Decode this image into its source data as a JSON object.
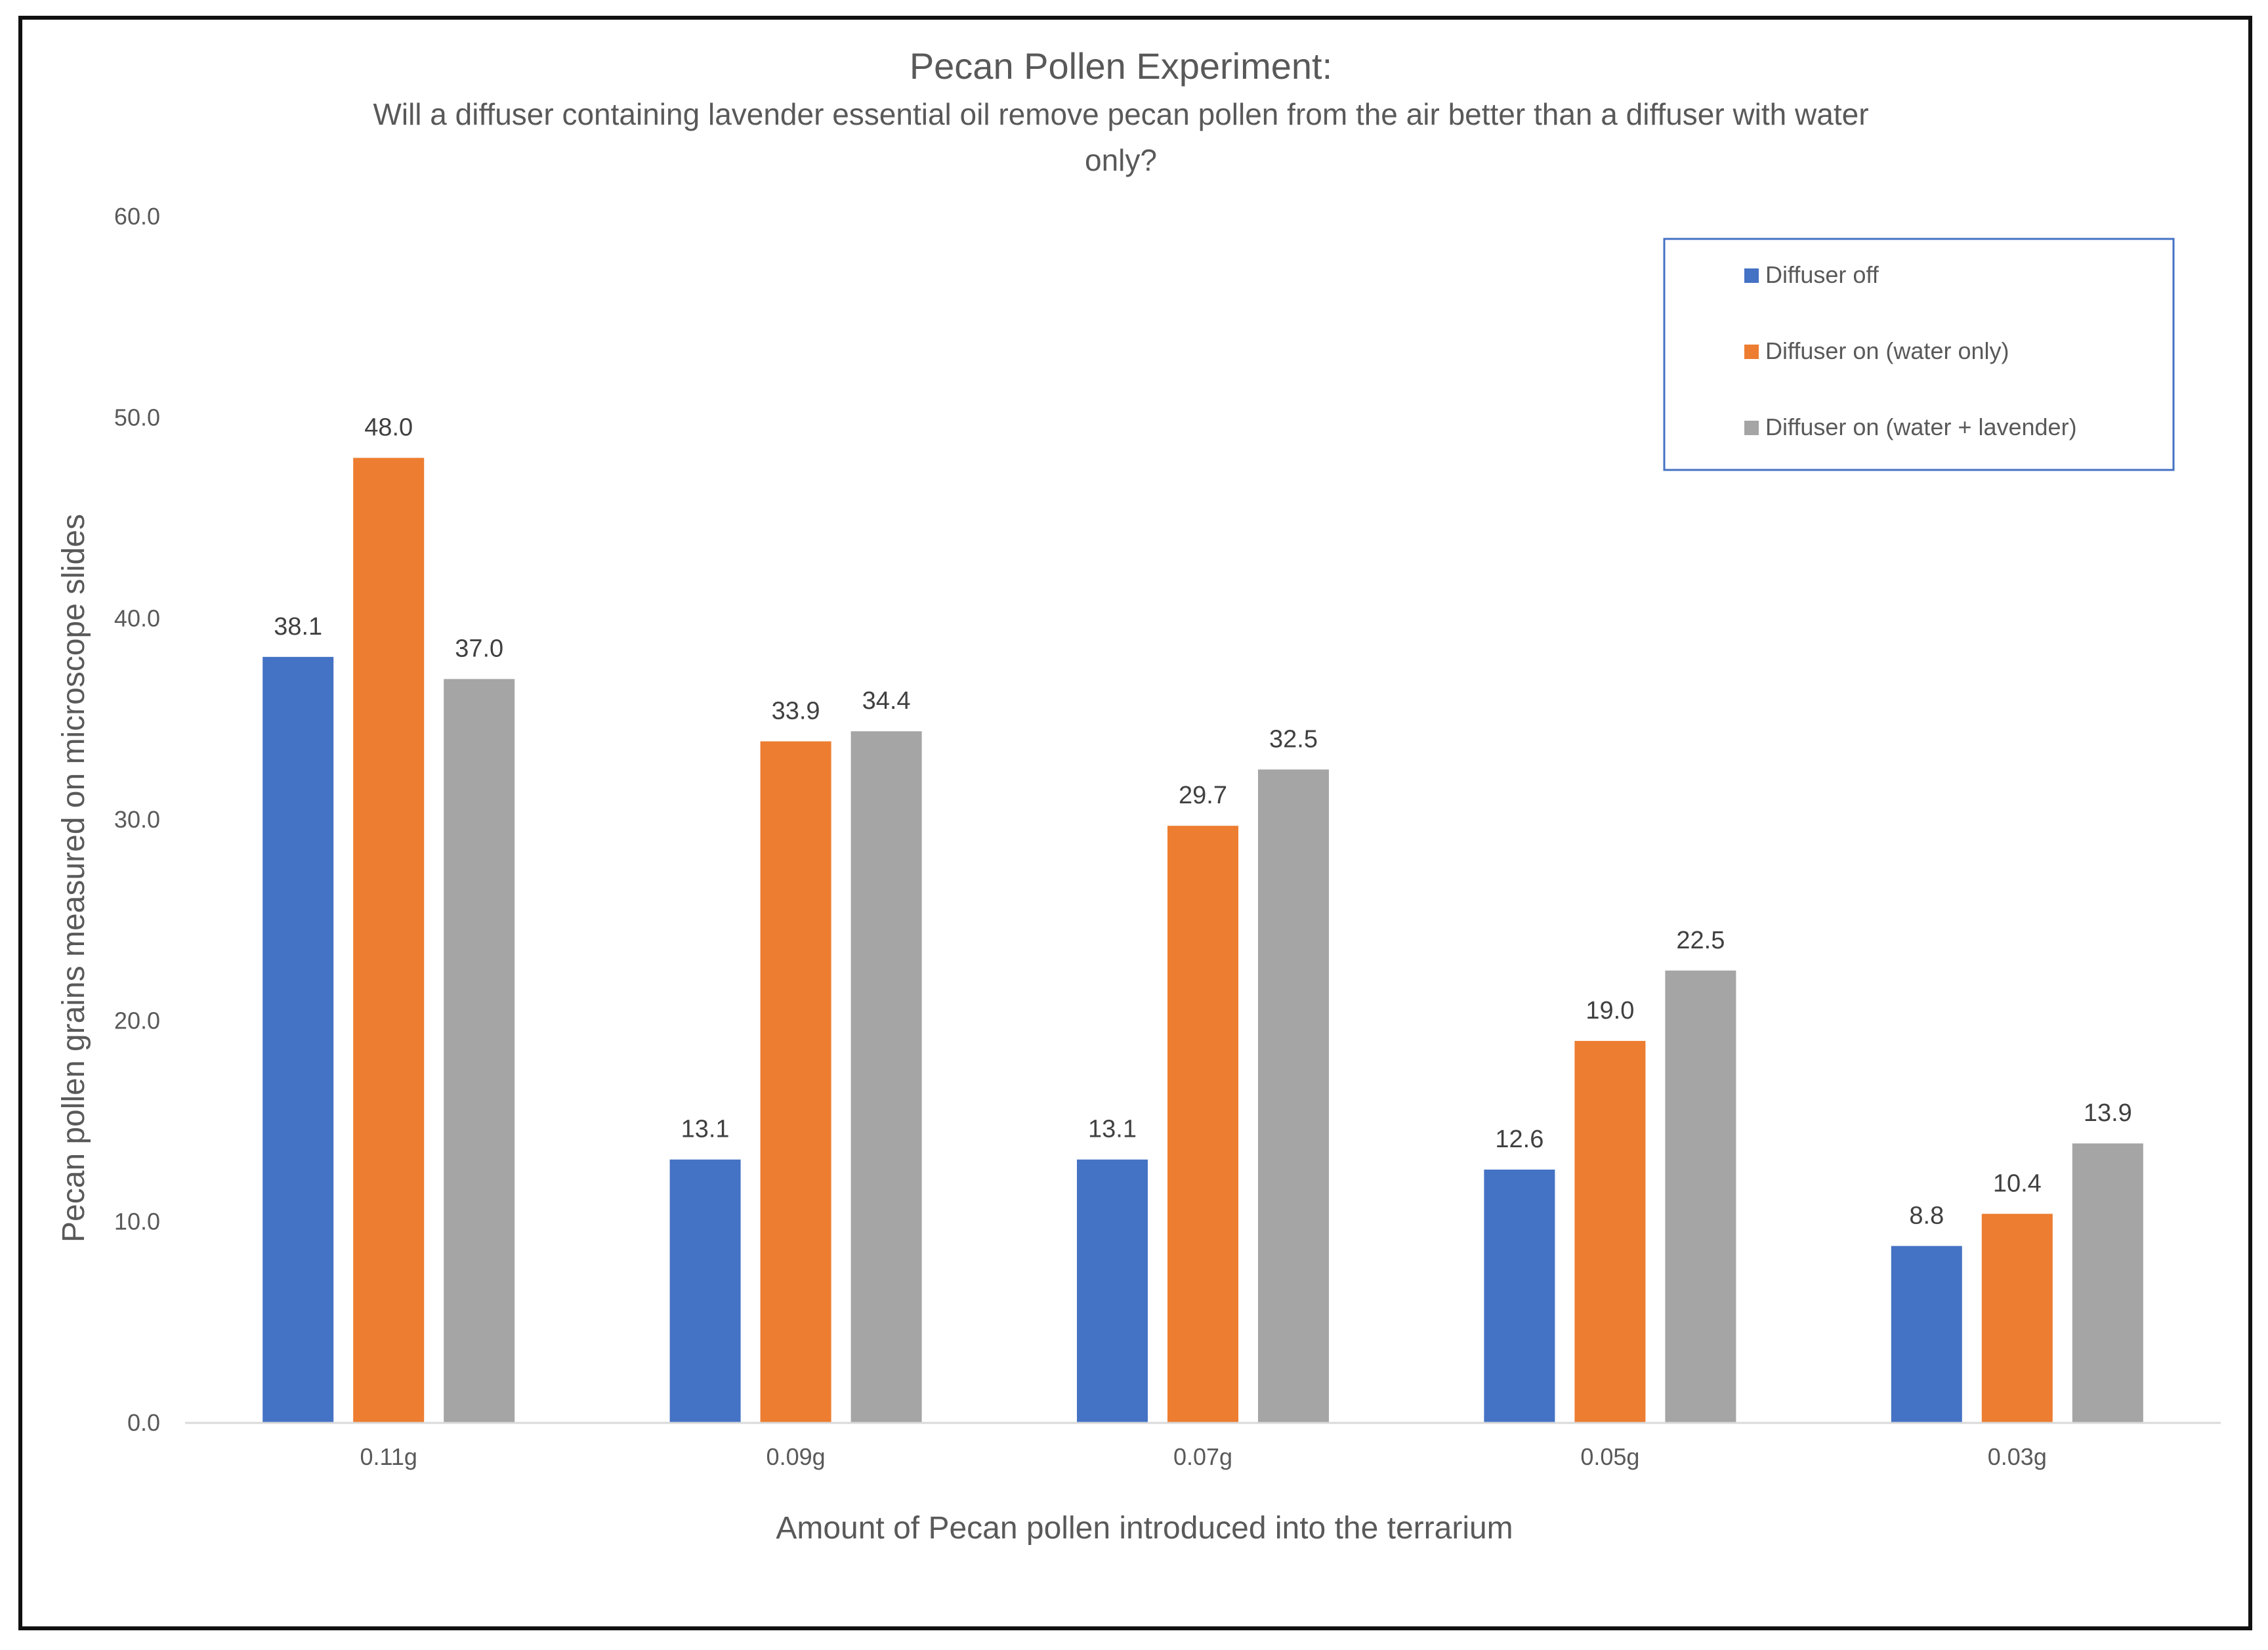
{
  "chart_data": {
    "type": "bar",
    "title": "Pecan Pollen Experiment:",
    "subtitle_line1": "Will a diffuser containing lavender essential oil remove pecan pollen from the air better than a diffuser with water",
    "subtitle_line2": "only?",
    "xlabel": "Amount of Pecan pollen introduced into the terrarium",
    "ylabel": "Pecan pollen grains measured on microscope slides",
    "categories": [
      "0.11g",
      "0.09g",
      "0.07g",
      "0.05g",
      "0.03g"
    ],
    "ylim": [
      0,
      60
    ],
    "yticks": [
      "0.0",
      "10.0",
      "20.0",
      "30.0",
      "40.0",
      "50.0",
      "60.0"
    ],
    "grid": false,
    "legend_position": "top-right",
    "series": [
      {
        "name": "Diffuser off",
        "color": "#4472C4",
        "values": [
          38.1,
          13.1,
          13.1,
          12.6,
          8.8
        ],
        "labels": [
          "38.1",
          "13.1",
          "13.1",
          "12.6",
          "8.8"
        ]
      },
      {
        "name": "Diffuser on (water only)",
        "color": "#ED7D31",
        "values": [
          48.0,
          33.9,
          29.7,
          19.0,
          10.4
        ],
        "labels": [
          "48.0",
          "33.9",
          "29.7",
          "19.0",
          "10.4"
        ]
      },
      {
        "name": "Diffuser on (water + lavender)",
        "color": "#A5A5A5",
        "values": [
          37.0,
          34.4,
          32.5,
          22.5,
          13.9
        ],
        "labels": [
          "37.0",
          "34.4",
          "32.5",
          "22.5",
          "13.9"
        ]
      }
    ],
    "legend_border_color": "#4472C4",
    "axis_color": "#D9D9D9"
  }
}
